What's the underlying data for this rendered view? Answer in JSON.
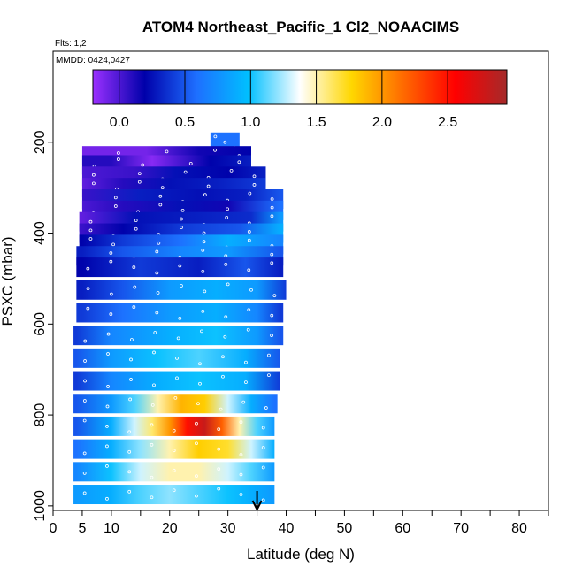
{
  "chart_data": {
    "type": "heatmap",
    "title": "ATOM4 Northeast_Pacific_1 Cl2_NOAACIMS",
    "flights_label": "Flts: 1,2",
    "dates_label": "MMDD: 0424,0427",
    "xlabel": "Latitude (deg N)",
    "ylabel": "PSXC (mbar)",
    "xlim": [
      0,
      85
    ],
    "ylim": [
      1010,
      0
    ],
    "x_ticks": [
      0,
      5,
      10,
      20,
      30,
      40,
      50,
      60,
      70,
      80
    ],
    "x_minor_ticks": [
      15,
      25,
      35,
      45,
      55,
      65,
      75,
      85
    ],
    "y_ticks": [
      200,
      400,
      600,
      800,
      1000
    ],
    "colorbar": {
      "min": -0.2,
      "max": 2.95,
      "ticks": [
        0.0,
        0.5,
        1.0,
        1.5,
        2.0,
        2.5
      ],
      "tick_labels": [
        "0.0",
        "0.5",
        "1.0",
        "1.5",
        "2.0",
        "2.5"
      ],
      "colors": [
        "#9b30ff",
        "#0000aa",
        "#1e6fff",
        "#00bfff",
        "#ffffff",
        "#ffd700",
        "#ff6a00",
        "#ff0000",
        "#a52a2a"
      ]
    },
    "aircraft_marker_lat": 35,
    "rows": [
      {
        "p": 200,
        "lat0": 27,
        "lat1": 32,
        "base": 0.3,
        "pts": [
          [
            28,
            0.6
          ],
          [
            32,
            0.6
          ]
        ]
      },
      {
        "p": 230,
        "lat0": 5,
        "lat1": 34,
        "base": 0.0,
        "pts": [
          [
            16,
            -0.1
          ],
          [
            25,
            0.15
          ],
          [
            34,
            0.2
          ]
        ]
      },
      {
        "p": 250,
        "lat0": 5,
        "lat1": 34,
        "base": 0.0,
        "pts": [
          [
            10,
            0.1
          ],
          [
            17,
            -0.15
          ],
          [
            27,
            0.2
          ],
          [
            34,
            0.3
          ]
        ]
      },
      {
        "p": 275,
        "lat0": 5,
        "lat1": 36.5,
        "base": 0.1,
        "pts": [
          [
            5,
            0.0
          ],
          [
            14,
            0.05
          ],
          [
            21,
            0.25
          ],
          [
            30,
            0.2
          ],
          [
            36,
            0.3
          ]
        ]
      },
      {
        "p": 300,
        "lat0": 5,
        "lat1": 36.5,
        "base": 0.2,
        "pts": [
          [
            5,
            -0.05
          ],
          [
            12,
            0.1
          ],
          [
            20,
            0.25
          ],
          [
            28,
            0.3
          ],
          [
            36,
            0.4
          ]
        ]
      },
      {
        "p": 325,
        "lat0": 5,
        "lat1": 39.5,
        "base": 0.25,
        "pts": [
          [
            5,
            0.05
          ],
          [
            15,
            0.3
          ],
          [
            25,
            0.25
          ],
          [
            33,
            0.3
          ],
          [
            39,
            0.5
          ]
        ]
      },
      {
        "p": 350,
        "lat0": 5,
        "lat1": 39.5,
        "base": 0.2,
        "pts": [
          [
            5,
            0.0
          ],
          [
            12,
            0.1
          ],
          [
            22,
            0.25
          ],
          [
            30,
            0.15
          ],
          [
            39,
            0.6
          ]
        ]
      },
      {
        "p": 375,
        "lat0": 4.5,
        "lat1": 39.5,
        "base": 0.3,
        "pts": [
          [
            5,
            -0.05
          ],
          [
            14,
            0.25
          ],
          [
            24,
            0.3
          ],
          [
            34,
            0.35
          ],
          [
            39,
            0.8
          ]
        ]
      },
      {
        "p": 400,
        "lat0": 4.5,
        "lat1": 39.5,
        "base": 0.3,
        "pts": [
          [
            5,
            0.05
          ],
          [
            12,
            0.2
          ],
          [
            22,
            0.4
          ],
          [
            32,
            0.5
          ],
          [
            39,
            0.9
          ]
        ]
      },
      {
        "p": 425,
        "lat0": 4.5,
        "lat1": 39.5,
        "base": 0.4,
        "pts": [
          [
            5,
            0.2
          ],
          [
            12,
            0.4
          ],
          [
            22,
            0.6
          ],
          [
            30,
            0.9
          ],
          [
            39,
            0.7
          ]
        ]
      },
      {
        "p": 450,
        "lat0": 4,
        "lat1": 39.5,
        "base": 0.4,
        "pts": [
          [
            5,
            0.3
          ],
          [
            12,
            0.5
          ],
          [
            22,
            0.7
          ],
          [
            30,
            0.8
          ],
          [
            39,
            0.5
          ]
        ]
      },
      {
        "p": 475,
        "lat0": 4,
        "lat1": 39.5,
        "base": 0.3,
        "pts": [
          [
            5,
            0.2
          ],
          [
            15,
            0.4
          ],
          [
            25,
            0.3
          ],
          [
            33,
            0.5
          ],
          [
            39,
            0.3
          ]
        ]
      },
      {
        "p": 525,
        "lat0": 4,
        "lat1": 40,
        "base": 0.6,
        "pts": [
          [
            5,
            0.3
          ],
          [
            12,
            0.5
          ],
          [
            20,
            0.8
          ],
          [
            28,
            0.9
          ],
          [
            35,
            0.8
          ],
          [
            40,
            0.4
          ]
        ]
      },
      {
        "p": 575,
        "lat0": 4,
        "lat1": 39.5,
        "base": 0.6,
        "pts": [
          [
            5,
            0.4
          ],
          [
            12,
            0.6
          ],
          [
            20,
            0.8
          ],
          [
            28,
            0.9
          ],
          [
            35,
            0.7
          ],
          [
            39,
            0.4
          ]
        ]
      },
      {
        "p": 625,
        "lat0": 3.5,
        "lat1": 39.5,
        "base": 0.8,
        "pts": [
          [
            4,
            0.4
          ],
          [
            10,
            0.7
          ],
          [
            20,
            0.9
          ],
          [
            28,
            1.0
          ],
          [
            35,
            0.8
          ],
          [
            39,
            0.5
          ]
        ]
      },
      {
        "p": 675,
        "lat0": 3.5,
        "lat1": 39,
        "base": 0.9,
        "pts": [
          [
            4,
            0.5
          ],
          [
            10,
            0.8
          ],
          [
            18,
            1.0
          ],
          [
            25,
            1.1
          ],
          [
            33,
            0.9
          ],
          [
            39,
            0.5
          ]
        ]
      },
      {
        "p": 725,
        "lat0": 3.5,
        "lat1": 39,
        "base": 0.8,
        "pts": [
          [
            4,
            0.4
          ],
          [
            10,
            0.7
          ],
          [
            18,
            0.9
          ],
          [
            25,
            1.0
          ],
          [
            33,
            0.9
          ],
          [
            39,
            0.4
          ]
        ]
      },
      {
        "p": 775,
        "lat0": 3.5,
        "lat1": 38.5,
        "base": 0.8,
        "pts": [
          [
            4,
            0.5
          ],
          [
            10,
            0.8
          ],
          [
            14,
            1.1
          ],
          [
            18,
            1.5
          ],
          [
            22,
            1.9
          ],
          [
            26,
            1.8
          ],
          [
            30,
            1.3
          ],
          [
            34,
            0.9
          ],
          [
            38,
            0.6
          ]
        ]
      },
      {
        "p": 825,
        "lat0": 3.5,
        "lat1": 38,
        "base": 0.9,
        "pts": [
          [
            4,
            0.5
          ],
          [
            10,
            0.9
          ],
          [
            14,
            1.3
          ],
          [
            17,
            1.6
          ],
          [
            20,
            2.0
          ],
          [
            23,
            2.5
          ],
          [
            26,
            2.8
          ],
          [
            29,
            2.2
          ],
          [
            32,
            1.5
          ],
          [
            35,
            1.1
          ],
          [
            38,
            0.8
          ]
        ]
      },
      {
        "p": 875,
        "lat0": 3.5,
        "lat1": 38,
        "base": 1.0,
        "pts": [
          [
            4,
            0.6
          ],
          [
            10,
            0.9
          ],
          [
            15,
            1.2
          ],
          [
            20,
            1.5
          ],
          [
            25,
            1.8
          ],
          [
            30,
            1.7
          ],
          [
            34,
            1.3
          ],
          [
            38,
            0.9
          ]
        ]
      },
      {
        "p": 925,
        "lat0": 3.5,
        "lat1": 38,
        "base": 1.1,
        "pts": [
          [
            4,
            0.7
          ],
          [
            10,
            1.0
          ],
          [
            15,
            1.3
          ],
          [
            20,
            1.5
          ],
          [
            25,
            1.5
          ],
          [
            30,
            1.3
          ],
          [
            34,
            1.1
          ],
          [
            38,
            0.8
          ]
        ]
      },
      {
        "p": 975,
        "lat0": 3.5,
        "lat1": 38,
        "base": 1.0,
        "pts": [
          [
            4,
            0.8
          ],
          [
            10,
            0.9
          ],
          [
            15,
            1.1
          ],
          [
            20,
            1.2
          ],
          [
            25,
            1.1
          ],
          [
            30,
            1.0
          ],
          [
            34,
            0.9
          ],
          [
            38,
            0.8
          ]
        ]
      }
    ]
  }
}
